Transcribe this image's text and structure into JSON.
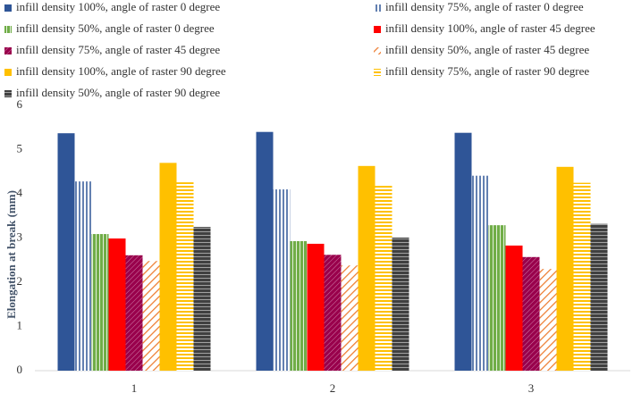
{
  "chart_data": {
    "type": "bar",
    "y_label": "Elongation at break  (mm)",
    "categories": [
      "1",
      "2",
      "3"
    ],
    "ylim": [
      0,
      6
    ],
    "yticks": [
      0,
      1,
      2,
      3,
      4,
      5,
      6
    ],
    "grid": false,
    "series": [
      {
        "name": "infill density 100%, angle of raster 0 degree",
        "color": "#2f5597",
        "pattern": "solid",
        "values": [
          5.37,
          5.4,
          5.38
        ]
      },
      {
        "name": "infill density 75%, angle of raster 0 degree",
        "color": "#2f5597",
        "pattern": "vertical",
        "values": [
          4.28,
          4.1,
          4.41
        ]
      },
      {
        "name": "infill density 50%, angle of raster 0 degree",
        "color": "#70ad47",
        "pattern": "vertical-dense",
        "values": [
          3.09,
          2.93,
          3.29
        ]
      },
      {
        "name": "infill density 100%, angle of raster 45 degree",
        "color": "#ff0000",
        "pattern": "solid",
        "values": [
          2.99,
          2.87,
          2.83
        ]
      },
      {
        "name": "infill density 75%, angle of raster 45 degree",
        "color": "#99004c",
        "pattern": "diagonal-dense",
        "values": [
          2.61,
          2.62,
          2.57
        ]
      },
      {
        "name": "infill density 50%, angle of raster 45 degree",
        "color": "#ed7d31",
        "pattern": "diagonal",
        "values": [
          2.48,
          2.38,
          2.3
        ]
      },
      {
        "name": "infill density 100%, angle of raster 90 degree",
        "color": "#ffc000",
        "pattern": "solid",
        "values": [
          4.7,
          4.63,
          4.61
        ]
      },
      {
        "name": "infill density 75%, angle of raster 90 degree",
        "color": "#ffc000",
        "pattern": "horizontal",
        "values": [
          4.26,
          4.18,
          4.25
        ]
      },
      {
        "name": "infill density 50%, angle of raster 90 degree",
        "color": "#404040",
        "pattern": "horizontal-dense",
        "values": [
          3.25,
          3.01,
          3.32
        ]
      }
    ]
  }
}
